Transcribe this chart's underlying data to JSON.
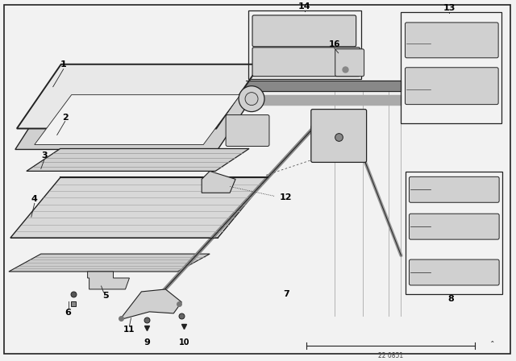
{
  "bg_color": "#f2f2f2",
  "line_color": "#222222",
  "fill_light": "#e8e8e8",
  "fill_mid": "#d0d0d0",
  "fill_dark": "#b8b8b8",
  "watermark": "22 0851"
}
